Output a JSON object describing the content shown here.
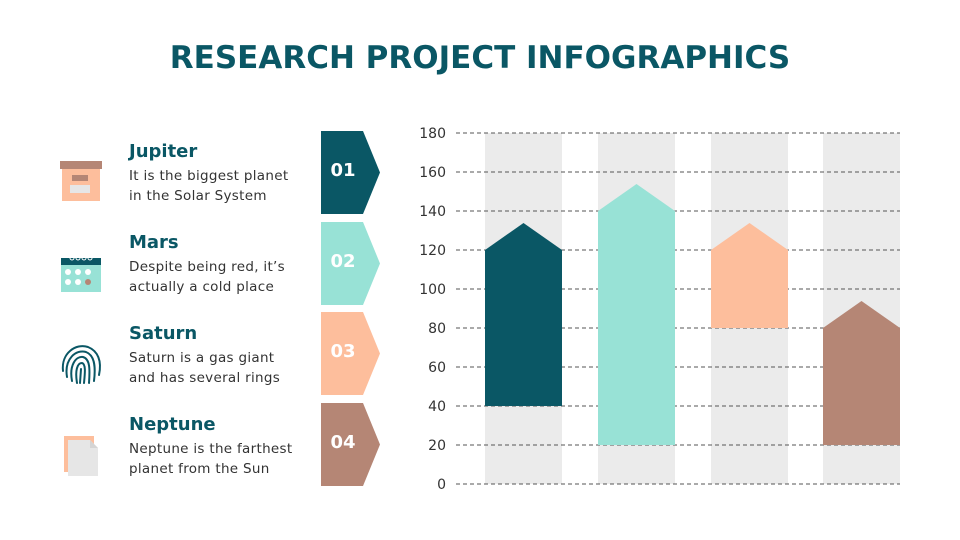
{
  "title": "RESEARCH PROJECT INFOGRAPHICS",
  "items": [
    {
      "number": "01",
      "name": "Jupiter",
      "desc": [
        "It is the biggest planet",
        "in the Solar System"
      ],
      "icon": "archive-box-icon",
      "color": "#0a5765"
    },
    {
      "number": "02",
      "name": "Mars",
      "desc": [
        "Despite being red, it’s",
        "actually a cold place"
      ],
      "icon": "calendar-icon",
      "color": "#98e2d6"
    },
    {
      "number": "03",
      "name": "Saturn",
      "desc": [
        "Saturn is a gas giant",
        "and has several rings"
      ],
      "icon": "fingerprint-icon",
      "color": "#fdbe9c"
    },
    {
      "number": "04",
      "name": "Neptune",
      "desc": [
        "Neptune is the farthest",
        "planet from the Sun"
      ],
      "icon": "document-icon",
      "color": "#b58675"
    }
  ],
  "chart_data": {
    "type": "floating-bar",
    "yticks": [
      "0",
      "20",
      "40",
      "60",
      "80",
      "100",
      "120",
      "140",
      "160",
      "180"
    ],
    "ylim": [
      0,
      180
    ],
    "grid": true,
    "bars": [
      {
        "low": 40,
        "high": 120,
        "color": "#0a5765"
      },
      {
        "low": 20,
        "high": 140,
        "color": "#98e2d6"
      },
      {
        "low": 80,
        "high": 120,
        "color": "#fdbe9c"
      },
      {
        "low": 20,
        "high": 80,
        "color": "#b58675"
      }
    ],
    "column_background": "#ebebeb"
  }
}
